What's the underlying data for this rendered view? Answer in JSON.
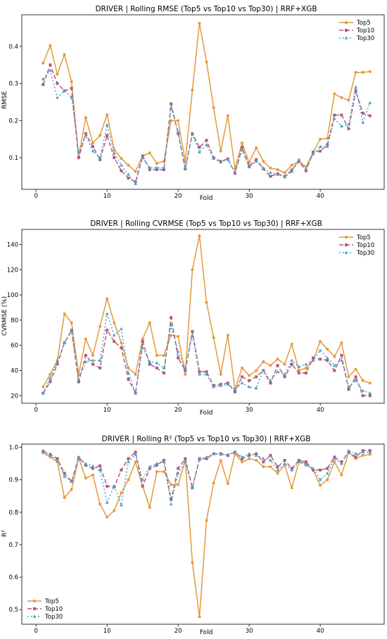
{
  "chart_data": [
    {
      "type": "line",
      "title": "DRIVER | Rolling RMSE (Top5 vs Top10 vs Top30) | RRF+XGB",
      "xlabel": "Fold",
      "ylabel": "RMSE",
      "xlim": [
        -2,
        49
      ],
      "ylim": [
        0.015,
        0.485
      ],
      "xticks": [
        0,
        10,
        20,
        30,
        40
      ],
      "yticks": [
        0.1,
        0.2,
        0.3,
        0.4
      ],
      "ytick_labels": [
        "0.1",
        "0.2",
        "0.3",
        "0.4"
      ],
      "legend_position": "top-right",
      "x": [
        1,
        2,
        3,
        4,
        5,
        6,
        7,
        8,
        9,
        10,
        11,
        12,
        13,
        14,
        15,
        16,
        17,
        18,
        19,
        20,
        21,
        22,
        23,
        24,
        25,
        26,
        27,
        28,
        29,
        30,
        31,
        32,
        33,
        34,
        35,
        36,
        37,
        38,
        39,
        40,
        41,
        42,
        43,
        44,
        45,
        46,
        47
      ],
      "series": [
        {
          "name": "Top5",
          "values": [
            0.355,
            0.402,
            0.325,
            0.378,
            0.305,
            0.103,
            0.208,
            0.14,
            0.16,
            0.216,
            0.122,
            0.098,
            0.08,
            0.063,
            0.105,
            0.113,
            0.085,
            0.09,
            0.2,
            0.2,
            0.09,
            0.282,
            0.462,
            0.358,
            0.235,
            0.118,
            0.213,
            0.07,
            0.14,
            0.087,
            0.127,
            0.09,
            0.072,
            0.068,
            0.06,
            0.08,
            0.09,
            0.075,
            0.115,
            0.15,
            0.152,
            0.272,
            0.262,
            0.255,
            0.33,
            0.33,
            0.332
          ]
        },
        {
          "name": "Top10",
          "values": [
            0.297,
            0.35,
            0.3,
            0.28,
            0.287,
            0.1,
            0.165,
            0.13,
            0.095,
            0.16,
            0.1,
            0.065,
            0.045,
            0.035,
            0.105,
            0.068,
            0.068,
            0.068,
            0.245,
            0.165,
            0.07,
            0.165,
            0.128,
            0.147,
            0.1,
            0.09,
            0.097,
            0.058,
            0.128,
            0.077,
            0.095,
            0.07,
            0.05,
            0.057,
            0.05,
            0.067,
            0.09,
            0.065,
            0.115,
            0.118,
            0.135,
            0.215,
            0.215,
            0.178,
            0.28,
            0.22,
            0.213
          ]
        },
        {
          "name": "Top30",
          "values": [
            0.312,
            0.335,
            0.262,
            0.28,
            0.263,
            0.115,
            0.16,
            0.118,
            0.1,
            0.188,
            0.113,
            0.08,
            0.055,
            0.03,
            0.1,
            0.073,
            0.073,
            0.073,
            0.235,
            0.17,
            0.073,
            0.163,
            0.115,
            0.135,
            0.098,
            0.088,
            0.095,
            0.06,
            0.12,
            0.075,
            0.09,
            0.072,
            0.06,
            0.055,
            0.048,
            0.063,
            0.095,
            0.07,
            0.11,
            0.13,
            0.13,
            0.205,
            0.185,
            0.19,
            0.29,
            0.195,
            0.248
          ]
        }
      ]
    },
    {
      "type": "line",
      "title": "DRIVER | Rolling CVRMSE (Top5 vs Top10 vs Top30) | RRF+XGB",
      "xlabel": "Fold",
      "ylabel": "CVRMSE (%)",
      "xlim": [
        -2,
        49
      ],
      "ylim": [
        14,
        152
      ],
      "xticks": [
        0,
        10,
        20,
        30,
        40
      ],
      "yticks": [
        20,
        40,
        60,
        80,
        100,
        120,
        140
      ],
      "ytick_labels": [
        "20",
        "40",
        "60",
        "80",
        "100",
        "120",
        "140"
      ],
      "legend_position": "top-right",
      "x": [
        1,
        2,
        3,
        4,
        5,
        6,
        7,
        8,
        9,
        10,
        11,
        12,
        13,
        14,
        15,
        16,
        17,
        18,
        19,
        20,
        21,
        22,
        23,
        24,
        25,
        26,
        27,
        28,
        29,
        30,
        31,
        32,
        33,
        34,
        35,
        36,
        37,
        38,
        39,
        40,
        41,
        42,
        43,
        44,
        45,
        46,
        47
      ],
      "series": [
        {
          "name": "Top5",
          "values": [
            27,
            37,
            48,
            85,
            78,
            37,
            65,
            52,
            75,
            97,
            78,
            62,
            42,
            37,
            65,
            78,
            52,
            52,
            68,
            67,
            37,
            120,
            147,
            94,
            66,
            37,
            68,
            25,
            42,
            36,
            40,
            47,
            44,
            49,
            45,
            61,
            40,
            42,
            48,
            63,
            57,
            51,
            62,
            35,
            41,
            32,
            30
          ]
        },
        {
          "name": "Top10",
          "values": [
            22,
            31,
            45,
            62,
            72,
            31,
            52,
            45,
            42,
            72,
            63,
            58,
            33,
            22,
            63,
            45,
            42,
            38,
            82,
            50,
            40,
            71,
            39,
            39,
            28,
            29,
            30,
            23,
            35,
            32,
            35,
            40,
            30,
            44,
            35,
            45,
            38,
            38,
            50,
            49,
            48,
            40,
            52,
            25,
            35,
            20,
            20
          ]
        },
        {
          "name": "Top30",
          "values": [
            22,
            34,
            47,
            62,
            71,
            33,
            47,
            48,
            48,
            85,
            68,
            73,
            38,
            22,
            58,
            47,
            46,
            42,
            76,
            55,
            42,
            68,
            37,
            37,
            27,
            28,
            29,
            25,
            30,
            27,
            26,
            40,
            32,
            39,
            37,
            48,
            43,
            45,
            48,
            56,
            50,
            44,
            48,
            27,
            32,
            24,
            22
          ]
        }
      ]
    },
    {
      "type": "line",
      "title": "DRIVER | Rolling R² (Top5 vs Top10 vs Top30) | RRF+XGB",
      "xlabel": "Fold",
      "ylabel": "R²",
      "xlim": [
        -2,
        49
      ],
      "ylim": [
        0.455,
        1.01
      ],
      "xticks": [
        0,
        10,
        20,
        30,
        40
      ],
      "yticks": [
        0.5,
        0.6,
        0.7,
        0.8,
        0.9,
        1.0
      ],
      "ytick_labels": [
        "0.5",
        "0.6",
        "0.7",
        "0.8",
        "0.9",
        "1.0"
      ],
      "legend_position": "bottom-left",
      "x": [
        1,
        2,
        3,
        4,
        5,
        6,
        7,
        8,
        9,
        10,
        11,
        12,
        13,
        14,
        15,
        16,
        17,
        18,
        19,
        20,
        21,
        22,
        23,
        24,
        25,
        26,
        27,
        28,
        29,
        30,
        31,
        32,
        33,
        34,
        35,
        36,
        37,
        38,
        39,
        40,
        41,
        42,
        43,
        44,
        45,
        46,
        47
      ],
      "series": [
        {
          "name": "Top5",
          "values": [
            0.983,
            0.97,
            0.955,
            0.845,
            0.87,
            0.967,
            0.905,
            0.915,
            0.825,
            0.785,
            0.805,
            0.86,
            0.9,
            0.955,
            0.88,
            0.815,
            0.925,
            0.925,
            0.885,
            0.885,
            0.96,
            0.645,
            0.478,
            0.775,
            0.89,
            0.96,
            0.888,
            0.98,
            0.955,
            0.965,
            0.96,
            0.94,
            0.94,
            0.92,
            0.945,
            0.875,
            0.955,
            0.95,
            0.93,
            0.883,
            0.9,
            0.955,
            0.915,
            0.985,
            0.965,
            0.975,
            0.978
          ]
        },
        {
          "name": "Top10",
          "values": [
            0.988,
            0.978,
            0.965,
            0.92,
            0.895,
            0.968,
            0.945,
            0.935,
            0.943,
            0.88,
            0.878,
            0.93,
            0.965,
            0.985,
            0.88,
            0.935,
            0.945,
            0.96,
            0.84,
            0.935,
            0.965,
            0.875,
            0.965,
            0.965,
            0.98,
            0.98,
            0.975,
            0.985,
            0.965,
            0.975,
            0.98,
            0.955,
            0.975,
            0.94,
            0.96,
            0.935,
            0.96,
            0.955,
            0.93,
            0.93,
            0.935,
            0.97,
            0.955,
            0.985,
            0.97,
            0.99,
            0.99
          ]
        },
        {
          "name": "Top30",
          "values": [
            0.985,
            0.975,
            0.96,
            0.91,
            0.895,
            0.97,
            0.95,
            0.942,
            0.93,
            0.83,
            0.88,
            0.822,
            0.955,
            0.978,
            0.9,
            0.94,
            0.95,
            0.955,
            0.825,
            0.92,
            0.955,
            0.875,
            0.962,
            0.97,
            0.98,
            0.978,
            0.978,
            0.985,
            0.97,
            0.98,
            0.975,
            0.965,
            0.96,
            0.93,
            0.95,
            0.93,
            0.955,
            0.945,
            0.935,
            0.9,
            0.92,
            0.965,
            0.95,
            0.99,
            0.98,
            0.985,
            0.985
          ]
        }
      ]
    }
  ],
  "style": {
    "series_colors": [
      "#e49a3c",
      "#b05a7a",
      "#4aa3c9"
    ],
    "series_dash": [
      "",
      "6,3",
      "2,3"
    ],
    "markers": [
      "circle",
      "square",
      "triangle"
    ]
  }
}
